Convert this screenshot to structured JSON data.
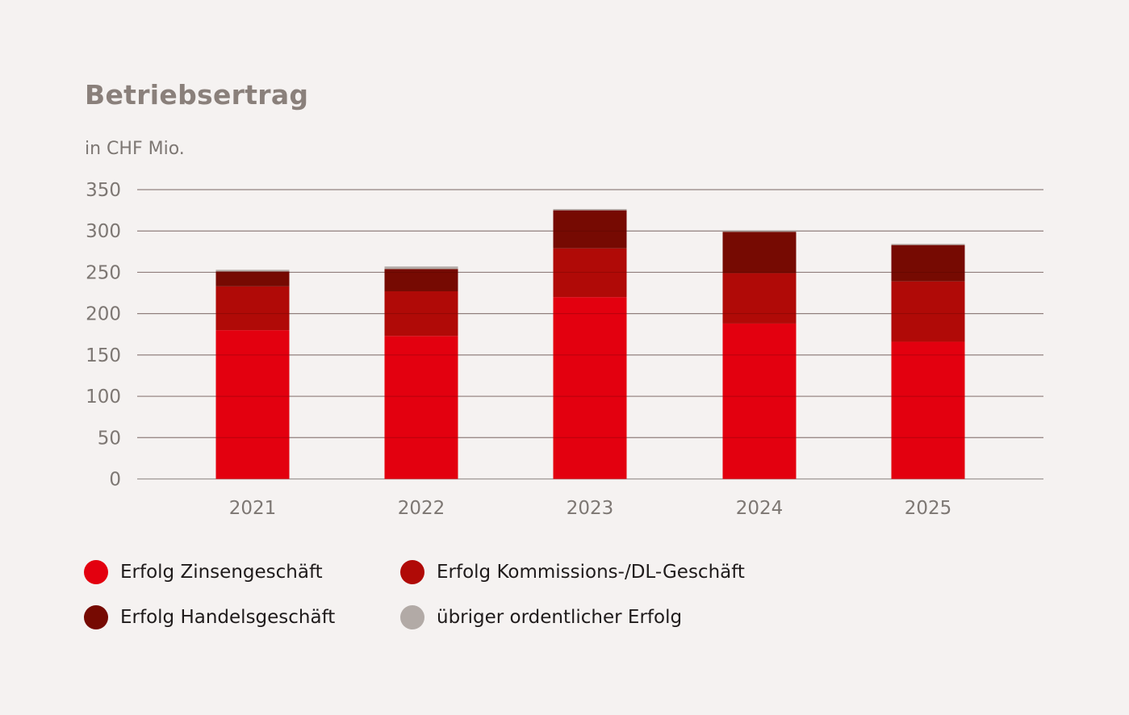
{
  "header": {
    "title": "Betriebsertrag",
    "unit": "in CHF Mio."
  },
  "chart_data": {
    "type": "bar",
    "stacked": true,
    "title": "Betriebsertrag",
    "subtitle": "in CHF Mio.",
    "xlabel": "",
    "ylabel": "in CHF Mio.",
    "ylim": [
      0,
      350
    ],
    "yticks": [
      0,
      50,
      100,
      150,
      200,
      250,
      300,
      350
    ],
    "grid": true,
    "legend_position": "bottom-left",
    "categories": [
      "2021",
      "2022",
      "2023",
      "2024",
      "2025"
    ],
    "series": [
      {
        "name": "Erfolg Zinsengeschäft",
        "color": "#e3000f",
        "values": [
          180,
          173,
          220,
          188,
          166
        ]
      },
      {
        "name": "Erfolg Kommissions-/DL-Geschäft",
        "color": "#b00a07",
        "values": [
          53,
          54,
          59,
          61,
          73
        ]
      },
      {
        "name": "Erfolg Handelsgeschäft",
        "color": "#760a02",
        "values": [
          18,
          27,
          46,
          50,
          44
        ]
      },
      {
        "name": "übriger ordentlicher Erfolg",
        "color": "#b2aaa6",
        "values": [
          2,
          3,
          1.5,
          1.5,
          1.3
        ]
      }
    ]
  },
  "legend": [
    {
      "label": "Erfolg Zinsengeschäft",
      "color": "#e3000f"
    },
    {
      "label": "Erfolg Kommissions-/DL-Geschäft",
      "color": "#b00a07"
    },
    {
      "label": "Erfolg Handelsgeschäft",
      "color": "#760a02"
    },
    {
      "label": "übriger ordentlicher Erfolg",
      "color": "#b2aaa6"
    }
  ]
}
